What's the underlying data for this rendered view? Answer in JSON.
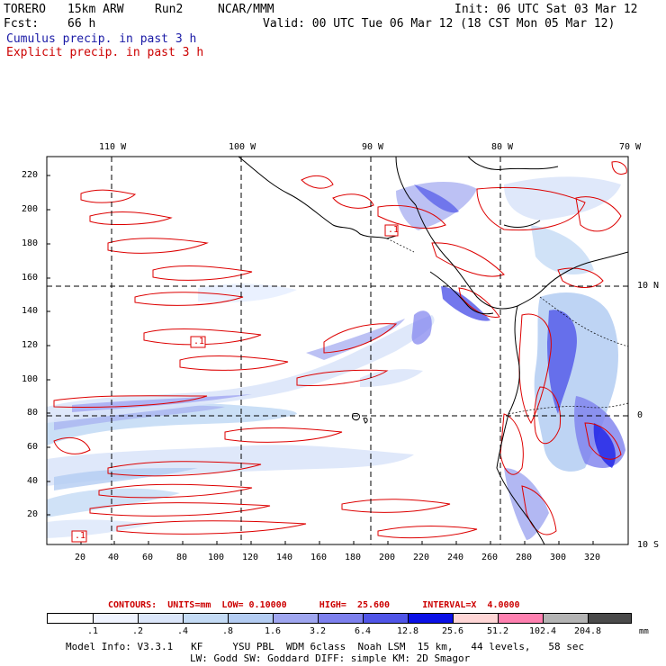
{
  "header": {
    "model": "TORERO",
    "resolution": "15km ARW",
    "run": "Run2",
    "org": "NCAR/MMM",
    "init": "Init: 06 UTC Sat 03 Mar 12",
    "fcst_label": "Fcst:",
    "fcst_value": "66 h",
    "valid": "Valid: 00 UTC Tue 06 Mar 12 (18 CST Mon 05 Mar 12)",
    "line_cumulus": "Cumulus precip. in past 3 h",
    "line_explicit": "Explicit precip. in past 3 h"
  },
  "axes": {
    "top_lon_labels": [
      "110 W",
      "100 W",
      "90 W",
      "80 W",
      "70 W"
    ],
    "right_lat_labels": [
      "10 N",
      "0",
      "10 S"
    ],
    "left_ticks": [
      20,
      40,
      60,
      80,
      100,
      120,
      140,
      160,
      180,
      200,
      220
    ],
    "bottom_ticks": [
      20,
      40,
      60,
      80,
      100,
      120,
      140,
      160,
      180,
      200,
      220,
      240,
      260,
      280,
      300,
      320
    ]
  },
  "contour_labels": [
    ".1",
    ".1",
    ".1"
  ],
  "contours_line": {
    "text": "CONTOURS:  UNITS=mm  LOW= 0.10000      HIGH=  25.600      INTERVAL=X  4.0000"
  },
  "colorbar": {
    "labels": [
      ".1",
      ".2",
      ".4",
      ".8",
      "1.6",
      "3.2",
      "6.4",
      "12.8",
      "25.6",
      "51.2",
      "102.4",
      "204.8"
    ],
    "units": "mm",
    "colors": [
      "#ffffff",
      "#f0f4ff",
      "#dbe6fa",
      "#c4dbf5",
      "#b3ccf2",
      "#9fa6f0",
      "#7d80ee",
      "#5055e8",
      "#0b10e6",
      "#ffd6d6",
      "#ff80b0",
      "#b4b4b4",
      "#4a4a4a",
      "#d9a3f5"
    ]
  },
  "footer": {
    "line1": "Model Info: V3.3.1   KF     YSU PBL  WDM 6class  Noah LSM  15 km,   44 levels,   58 sec",
    "line2": "LW: Godd SW: Goddard DIFF: simple KM: 2D Smagor"
  }
}
